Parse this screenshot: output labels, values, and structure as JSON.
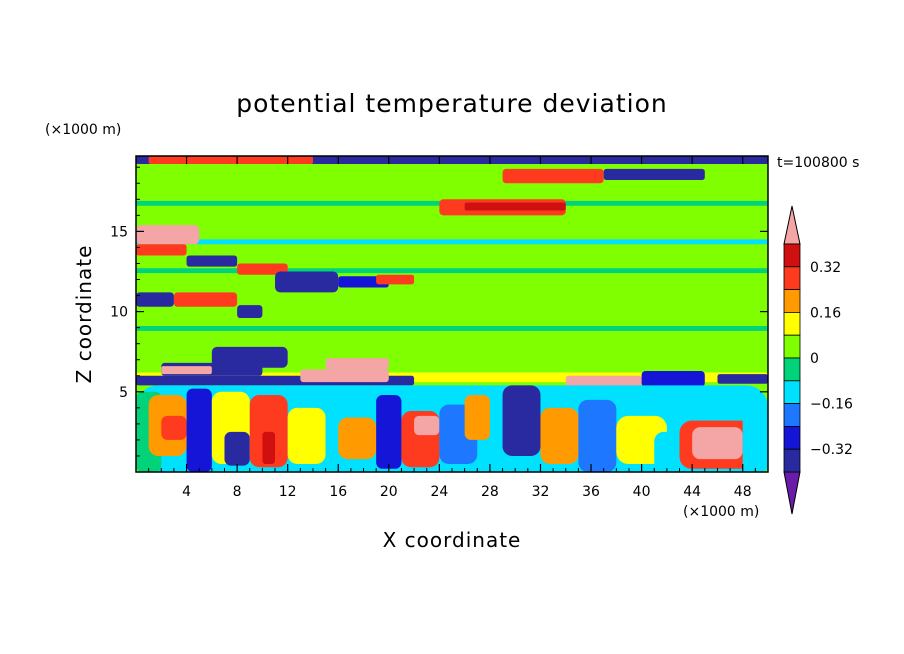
{
  "chart_data": {
    "type": "heatmap",
    "title": "potential temperature deviation",
    "time_label": "t=100800 s",
    "xlabel": "X coordinate",
    "ylabel": "Z coordinate",
    "x_unit": "(×1000 m)",
    "y_unit": "(×1000 m)",
    "xlim": [
      0,
      50
    ],
    "ylim": [
      0,
      19.7
    ],
    "x_ticks": [
      4,
      8,
      12,
      16,
      20,
      24,
      28,
      32,
      36,
      40,
      44,
      48
    ],
    "y_ticks": [
      5,
      10,
      15
    ],
    "colorbar": {
      "labels": [
        "0.32",
        "0.16",
        "0",
        "-0.16",
        "-0.32"
      ],
      "label_values": [
        0.32,
        0.16,
        0,
        -0.16,
        -0.32
      ],
      "levels": [
        -0.4,
        -0.32,
        -0.24,
        -0.16,
        -0.08,
        0,
        0.08,
        0.16,
        0.24,
        0.32,
        0.4
      ],
      "colors": [
        "#6a1ba8",
        "#2a2aa0",
        "#1515d8",
        "#1e78ff",
        "#00e0ff",
        "#00d37a",
        "#80ff00",
        "#ffff00",
        "#ff9a00",
        "#ff3b1f",
        "#d01010",
        "#f4a6a6"
      ],
      "extend": "both"
    },
    "regions": [
      {
        "x": [
          0,
          50
        ],
        "z": [
          0,
          19.7
        ],
        "value": 0.02
      },
      {
        "x": [
          0,
          50
        ],
        "z": [
          12.4,
          12.7
        ],
        "value": -0.05
      },
      {
        "x": [
          0,
          50
        ],
        "z": [
          11.2,
          11.5
        ],
        "value": 0.06
      },
      {
        "x": [
          0,
          50
        ],
        "z": [
          14.2,
          14.5
        ],
        "value": -0.1
      },
      {
        "x": [
          0,
          50
        ],
        "z": [
          10.1,
          10.4
        ],
        "value": 0.07
      },
      {
        "x": [
          0,
          50
        ],
        "z": [
          8.8,
          9.1
        ],
        "value": -0.05
      },
      {
        "x": [
          0,
          50
        ],
        "z": [
          16.6,
          16.9
        ],
        "value": -0.05
      },
      {
        "x": [
          0,
          50
        ],
        "z": [
          19.2,
          19.7
        ],
        "value": -0.35
      },
      {
        "x": [
          1,
          14
        ],
        "z": [
          19.2,
          19.7
        ],
        "value": 0.3
      },
      {
        "x": [
          24,
          34
        ],
        "z": [
          16.0,
          17.0
        ],
        "value": 0.25
      },
      {
        "x": [
          26,
          34
        ],
        "z": [
          16.3,
          16.8
        ],
        "value": 0.34
      },
      {
        "x": [
          29,
          37
        ],
        "z": [
          18.0,
          18.9
        ],
        "value": 0.28
      },
      {
        "x": [
          37,
          45
        ],
        "z": [
          18.2,
          18.9
        ],
        "value": -0.38
      },
      {
        "x": [
          0,
          5
        ],
        "z": [
          14.2,
          15.4
        ],
        "value": 0.43
      },
      {
        "x": [
          0,
          4
        ],
        "z": [
          13.5,
          14.2
        ],
        "value": 0.3
      },
      {
        "x": [
          4,
          8
        ],
        "z": [
          12.8,
          13.5
        ],
        "value": -0.35
      },
      {
        "x": [
          8,
          12
        ],
        "z": [
          12.3,
          13.0
        ],
        "value": 0.25
      },
      {
        "x": [
          11,
          16
        ],
        "z": [
          11.2,
          12.5
        ],
        "value": -0.4
      },
      {
        "x": [
          16,
          20
        ],
        "z": [
          11.5,
          12.2
        ],
        "value": -0.3
      },
      {
        "x": [
          19,
          22
        ],
        "z": [
          11.7,
          12.3
        ],
        "value": 0.3
      },
      {
        "x": [
          0,
          3
        ],
        "z": [
          10.3,
          11.2
        ],
        "value": -0.35
      },
      {
        "x": [
          3,
          8
        ],
        "z": [
          10.3,
          11.2
        ],
        "value": 0.25
      },
      {
        "x": [
          8,
          10
        ],
        "z": [
          9.6,
          10.4
        ],
        "value": -0.38
      },
      {
        "x": [
          6,
          12
        ],
        "z": [
          6.5,
          7.8
        ],
        "value": -0.33
      },
      {
        "x": [
          0,
          50
        ],
        "z": [
          5.6,
          6.2
        ],
        "value": 0.1
      },
      {
        "x": [
          0,
          22
        ],
        "z": [
          5.4,
          6.0
        ],
        "value": -0.4
      },
      {
        "x": [
          2,
          10
        ],
        "z": [
          6.0,
          6.8
        ],
        "value": -0.35
      },
      {
        "x": [
          2,
          6
        ],
        "z": [
          6.1,
          6.6
        ],
        "value": 0.43
      },
      {
        "x": [
          13,
          20
        ],
        "z": [
          5.6,
          6.4
        ],
        "value": 0.43
      },
      {
        "x": [
          15,
          20
        ],
        "z": [
          6.4,
          7.1
        ],
        "value": 0.43
      },
      {
        "x": [
          34,
          40
        ],
        "z": [
          5.3,
          6.0
        ],
        "value": 0.43
      },
      {
        "x": [
          40,
          45
        ],
        "z": [
          5.3,
          6.3
        ],
        "value": -0.3
      },
      {
        "x": [
          46,
          50
        ],
        "z": [
          5.5,
          6.1
        ],
        "value": -0.38
      },
      {
        "x": [
          0,
          50
        ],
        "z": [
          0,
          5.4
        ],
        "value": -0.15
      },
      {
        "x": [
          0,
          2
        ],
        "z": [
          0,
          5.0
        ],
        "value": -0.05
      },
      {
        "x": [
          1,
          4
        ],
        "z": [
          1.0,
          4.8
        ],
        "value": 0.2
      },
      {
        "x": [
          2,
          4
        ],
        "z": [
          2.0,
          3.5
        ],
        "value": 0.3
      },
      {
        "x": [
          4,
          6
        ],
        "z": [
          0,
          5.2
        ],
        "value": -0.25
      },
      {
        "x": [
          6,
          9
        ],
        "z": [
          0.5,
          5.0
        ],
        "value": 0.15
      },
      {
        "x": [
          7,
          9
        ],
        "z": [
          0.4,
          2.5
        ],
        "value": -0.34
      },
      {
        "x": [
          9,
          12
        ],
        "z": [
          0.3,
          4.8
        ],
        "value": 0.28
      },
      {
        "x": [
          10,
          11
        ],
        "z": [
          0.5,
          2.5
        ],
        "value": 0.36
      },
      {
        "x": [
          12,
          15
        ],
        "z": [
          0.5,
          4.0
        ],
        "value": 0.1
      },
      {
        "x": [
          15,
          17
        ],
        "z": [
          0,
          5.0
        ],
        "value": -0.1
      },
      {
        "x": [
          16,
          19
        ],
        "z": [
          0.8,
          3.4
        ],
        "value": 0.2
      },
      {
        "x": [
          19,
          21
        ],
        "z": [
          0.2,
          4.8
        ],
        "value": -0.3
      },
      {
        "x": [
          21,
          24
        ],
        "z": [
          0.3,
          3.8
        ],
        "value": 0.3
      },
      {
        "x": [
          22,
          24
        ],
        "z": [
          2.3,
          3.5
        ],
        "value": 0.4
      },
      {
        "x": [
          24,
          27
        ],
        "z": [
          0.5,
          4.2
        ],
        "value": -0.2
      },
      {
        "x": [
          26,
          28
        ],
        "z": [
          2.0,
          4.8
        ],
        "value": 0.18
      },
      {
        "x": [
          28,
          30
        ],
        "z": [
          0,
          3.0
        ],
        "value": -0.1
      },
      {
        "x": [
          29,
          32
        ],
        "z": [
          1.0,
          5.4
        ],
        "value": -0.34
      },
      {
        "x": [
          32,
          35
        ],
        "z": [
          0.5,
          4.0
        ],
        "value": 0.2
      },
      {
        "x": [
          35,
          38
        ],
        "z": [
          0,
          4.5
        ],
        "value": -0.2
      },
      {
        "x": [
          38,
          42
        ],
        "z": [
          0.5,
          3.5
        ],
        "value": 0.12
      },
      {
        "x": [
          41,
          44
        ],
        "z": [
          0,
          2.5
        ],
        "value": -0.1
      },
      {
        "x": [
          43,
          49
        ],
        "z": [
          0.2,
          3.2
        ],
        "value": 0.3
      },
      {
        "x": [
          44,
          48
        ],
        "z": [
          0.8,
          2.8
        ],
        "value": 0.43
      },
      {
        "x": [
          48,
          50
        ],
        "z": [
          0,
          4.5
        ],
        "value": -0.1
      }
    ]
  }
}
